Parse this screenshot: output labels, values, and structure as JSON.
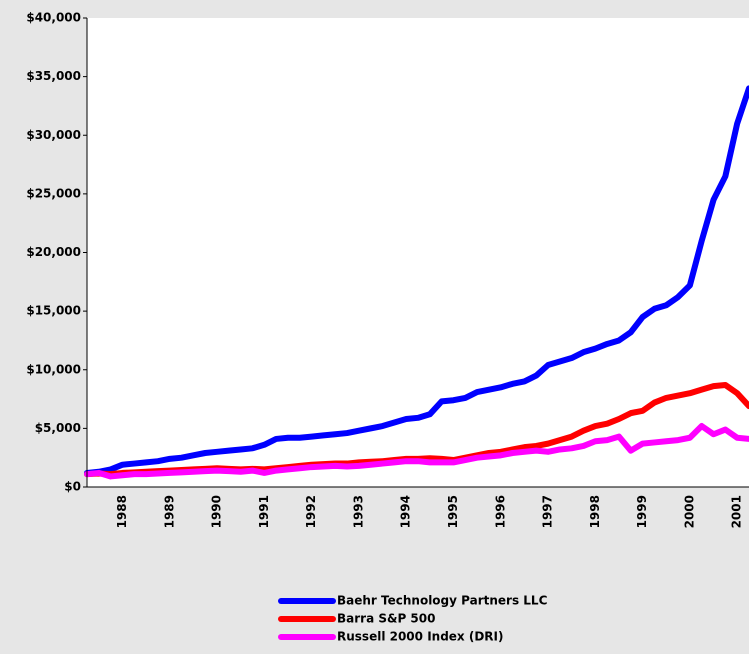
{
  "chart_data": {
    "type": "line",
    "categories": [
      null,
      null,
      null,
      "1988",
      null,
      null,
      null,
      "1989",
      null,
      null,
      null,
      "1990",
      null,
      null,
      null,
      "1991",
      null,
      null,
      null,
      "1992",
      null,
      null,
      null,
      "1993",
      null,
      null,
      null,
      "1994",
      null,
      null,
      null,
      "1995",
      null,
      null,
      null,
      "1996",
      null,
      null,
      null,
      "1997",
      null,
      null,
      null,
      "1998",
      null,
      null,
      null,
      "1999",
      null,
      null,
      null,
      "2000",
      null,
      null,
      null,
      "2001",
      null
    ],
    "series": [
      {
        "name": "Baehr Technology Partners LLC",
        "color": "#0000ff",
        "values": [
          1200,
          1300,
          1500,
          1900,
          2000,
          2100,
          2200,
          2400,
          2500,
          2700,
          2900,
          3000,
          3100,
          3200,
          3300,
          3600,
          4100,
          4200,
          4200,
          4300,
          4400,
          4500,
          4600,
          4800,
          5000,
          5200,
          5500,
          5800,
          5900,
          6200,
          7300,
          7400,
          7600,
          8100,
          8300,
          8500,
          8800,
          9000,
          9500,
          10400,
          10700,
          11000,
          11500,
          11800,
          12200,
          12500,
          13200,
          14500,
          15200,
          15500,
          16200,
          17200,
          21000,
          24500,
          26500,
          31000,
          34000
        ]
      },
      {
        "name": "Barra S&P 500",
        "color": "#ff0000",
        "values": [
          1100,
          1150,
          1100,
          1200,
          1250,
          1300,
          1350,
          1400,
          1450,
          1500,
          1550,
          1600,
          1550,
          1500,
          1550,
          1500,
          1600,
          1700,
          1800,
          1900,
          1950,
          2000,
          2000,
          2100,
          2150,
          2200,
          2300,
          2400,
          2400,
          2450,
          2400,
          2300,
          2500,
          2700,
          2900,
          3000,
          3200,
          3400,
          3500,
          3700,
          4000,
          4300,
          4800,
          5200,
          5400,
          5800,
          6300,
          6500,
          7200,
          7600,
          7800,
          8000,
          8300,
          8600,
          8700,
          8000,
          6900
        ]
      },
      {
        "name": "Russell 2000 Index (DRI)",
        "color": "#ff00ff",
        "values": [
          1100,
          1200,
          900,
          1000,
          1100,
          1100,
          1150,
          1200,
          1250,
          1300,
          1350,
          1400,
          1350,
          1300,
          1400,
          1200,
          1400,
          1500,
          1600,
          1700,
          1750,
          1800,
          1750,
          1800,
          1900,
          2000,
          2100,
          2200,
          2200,
          2100,
          2100,
          2100,
          2300,
          2500,
          2600,
          2700,
          2900,
          3000,
          3100,
          3000,
          3200,
          3300,
          3500,
          3900,
          4000,
          4300,
          3100,
          3700,
          3800,
          3900,
          4000,
          4200,
          5200,
          4500,
          4900,
          4200,
          4100
        ]
      }
    ],
    "ylim": [
      0,
      40000
    ],
    "yticks": [
      {
        "value": 0,
        "label": "$0"
      },
      {
        "value": 5000,
        "label": "$5,000"
      },
      {
        "value": 10000,
        "label": "$10,000"
      },
      {
        "value": 15000,
        "label": "$15,000"
      },
      {
        "value": 20000,
        "label": "$20,000"
      },
      {
        "value": 25000,
        "label": "$25,000"
      },
      {
        "value": 30000,
        "label": "$30,000"
      },
      {
        "value": 35000,
        "label": "$35,000"
      },
      {
        "value": 40000,
        "label": "$40,000"
      }
    ],
    "grid": false
  }
}
